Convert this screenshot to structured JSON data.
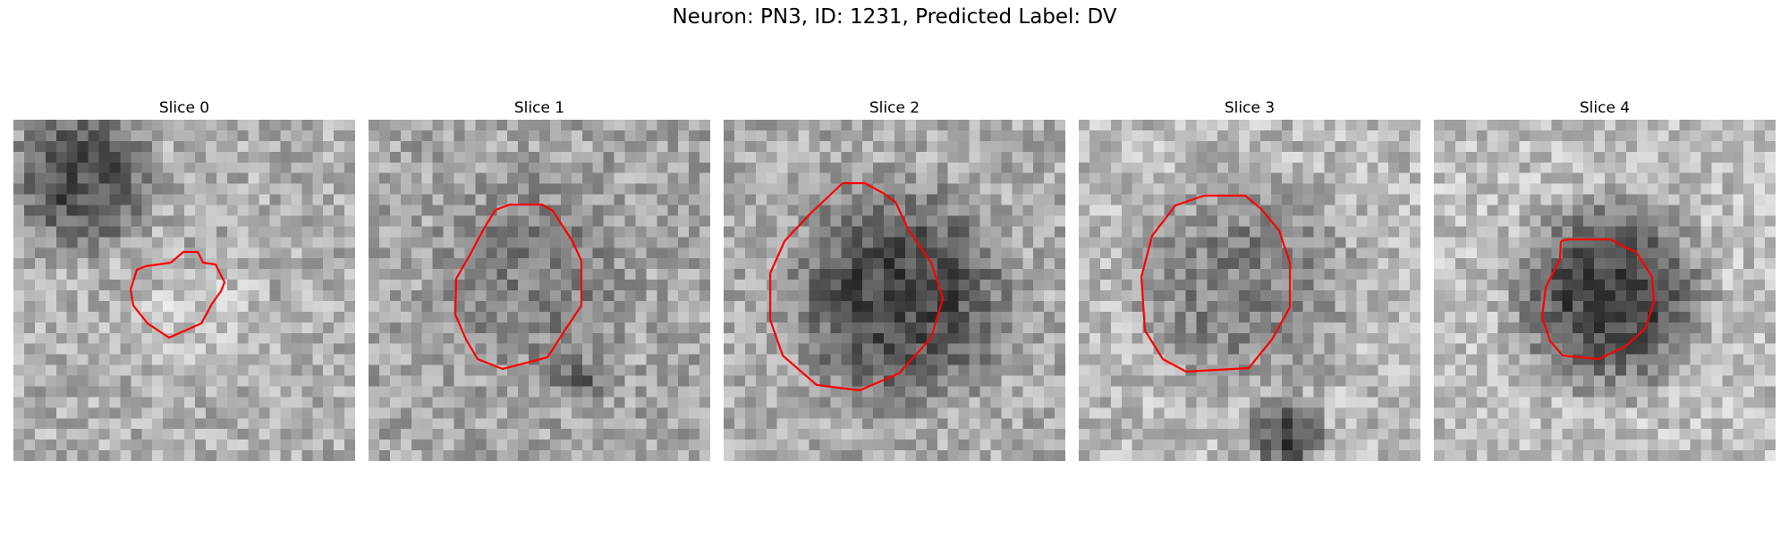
{
  "figure": {
    "title": "Neuron: PN3, ID: 1231, Predicted Label: DV",
    "contour_color": "#ff0000"
  },
  "slices": [
    {
      "label": "Slice 0"
    },
    {
      "label": "Slice 1"
    },
    {
      "label": "Slice 2"
    },
    {
      "label": "Slice 3"
    },
    {
      "label": "Slice 4"
    }
  ]
}
